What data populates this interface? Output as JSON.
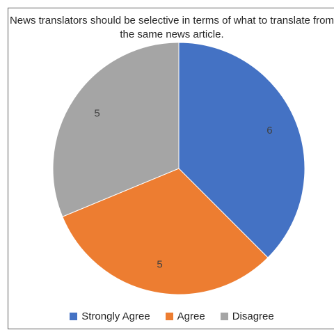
{
  "chart_data": {
    "type": "pie",
    "title": "News translators should be selective in terms of what to translate from the same news article.",
    "categories": [
      "Strongly Agree",
      "Agree",
      "Disagree"
    ],
    "values": [
      6,
      5,
      5
    ],
    "colors": [
      "#4472c4",
      "#ed7d31",
      "#a5a5a5"
    ],
    "legend_position": "bottom",
    "data_labels": [
      "6",
      "5",
      "5"
    ]
  }
}
